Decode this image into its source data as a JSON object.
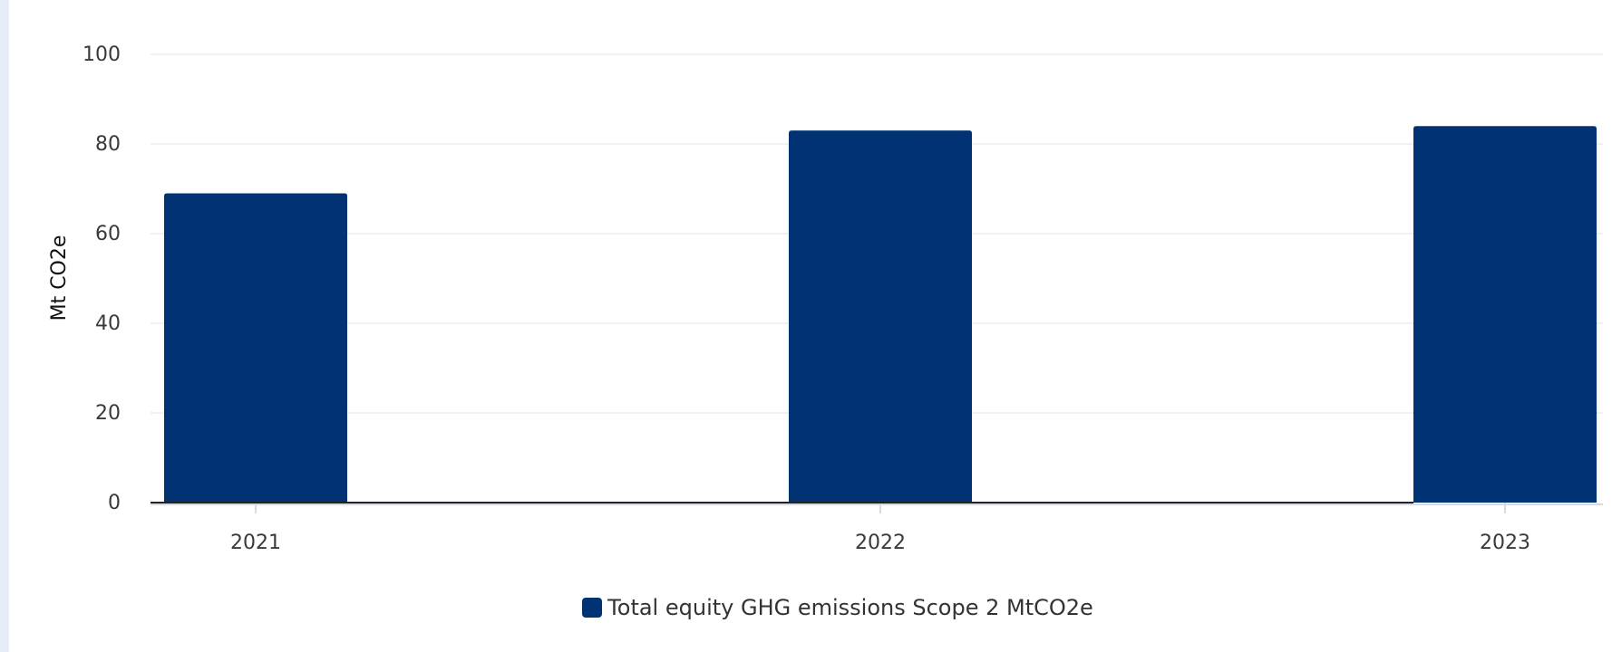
{
  "chart_data": {
    "type": "bar",
    "title": "",
    "xlabel": "",
    "ylabel": "Mt CO2e",
    "categories": [
      "2021",
      "2022",
      "2023"
    ],
    "series": [
      {
        "name": "Total equity GHG emissions Scope 2 MtCO2e",
        "values": [
          69,
          83,
          84
        ],
        "color": "#003274"
      }
    ],
    "ylim": [
      0,
      100
    ],
    "yticks": [
      0,
      20,
      40,
      60,
      80,
      100
    ],
    "grid": true,
    "legend": "bottom-center"
  }
}
